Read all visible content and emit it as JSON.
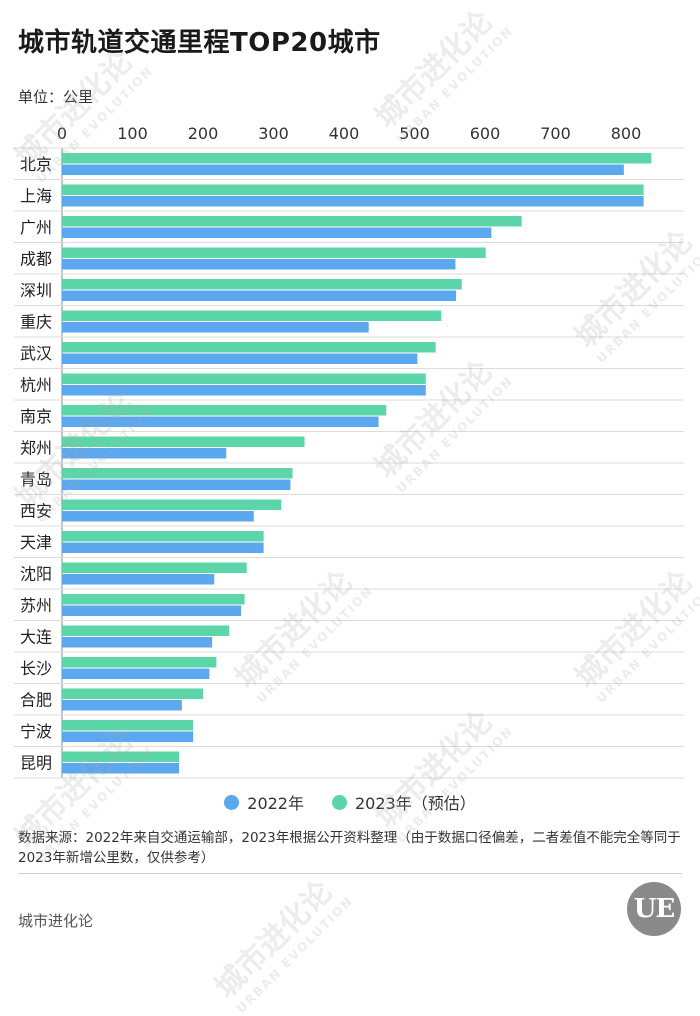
{
  "title": "城市轨道交通里程TOP20城市",
  "unit": "单位：公里",
  "note": "数据来源：2022年来自交通运输部，2023年根据公开资料整理（由于数据口径偏差，二者差值不能完全等同于2023年新增公里数，仅供参考）",
  "brand": "城市进化论",
  "logo": {
    "letters": "UE"
  },
  "watermark": {
    "main": "城市进化论",
    "sub": "URBAN EVOLUTION"
  },
  "colors": {
    "y2022": "#5ba8ee",
    "y2023": "#5cd6a8",
    "grid": "#dcdcdc"
  },
  "chart_data": {
    "type": "bar",
    "orientation": "horizontal",
    "categories": [
      "北京",
      "上海",
      "广州",
      "成都",
      "深圳",
      "重庆",
      "武汉",
      "杭州",
      "南京",
      "郑州",
      "青岛",
      "西安",
      "天津",
      "沈阳",
      "苏州",
      "大连",
      "长沙",
      "合肥",
      "宁波",
      "昆明"
    ],
    "series": [
      {
        "name": "2022年",
        "color": "#5ba8ee",
        "values": [
          797,
          825,
          609,
          558,
          559,
          435,
          504,
          516,
          449,
          233,
          324,
          272,
          286,
          216,
          254,
          213,
          209,
          170,
          186,
          166
        ]
      },
      {
        "name": "2023年（预估）",
        "color": "#5cd6a8",
        "values": [
          836,
          825,
          652,
          601,
          567,
          538,
          530,
          516,
          460,
          344,
          327,
          311,
          286,
          262,
          259,
          237,
          219,
          200,
          186,
          166
        ]
      }
    ],
    "xticks": [
      0,
      100,
      200,
      300,
      400,
      500,
      600,
      700,
      800
    ],
    "xlim": [
      0,
      850
    ],
    "grid": false,
    "legend": "bottom-center"
  }
}
